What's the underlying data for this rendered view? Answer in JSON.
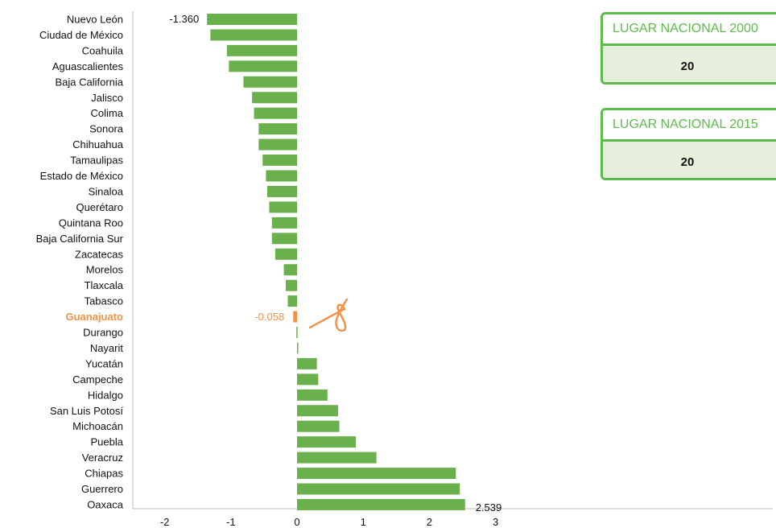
{
  "colors": {
    "bar": "#6ab04c",
    "highlight": "#f0934a",
    "card_border": "#5fba4e",
    "card_fill": "#e6efdc"
  },
  "cards": [
    {
      "title": "LUGAR NACIONAL 2000",
      "value": "20"
    },
    {
      "title": "LUGAR NACIONAL 2015",
      "value": "20"
    }
  ],
  "chart_data": {
    "type": "bar",
    "orientation": "horizontal",
    "categories": [
      "Nuevo León",
      "Ciudad de México",
      "Coahuila",
      "Aguascalientes",
      "Baja California",
      "Jalisco",
      "Colima",
      "Sonora",
      "Chihuahua",
      "Tamaulipas",
      "Estado de México",
      "Sinaloa",
      "Querétaro",
      "Quintana Roo",
      "Baja California Sur",
      "Zacatecas",
      "Morelos",
      "Tlaxcala",
      "Tabasco",
      "Guanajuato",
      "Durango",
      "Nayarit",
      "Yucatán",
      "Campeche",
      "Hidalgo",
      "San Luis Potosí",
      "Michoacán",
      "Puebla",
      "Veracruz",
      "Chiapas",
      "Guerrero",
      "Oaxaca"
    ],
    "values": [
      -1.36,
      -1.31,
      -1.06,
      -1.03,
      -0.81,
      -0.68,
      -0.65,
      -0.58,
      -0.58,
      -0.52,
      -0.47,
      -0.45,
      -0.42,
      -0.38,
      -0.38,
      -0.33,
      -0.2,
      -0.17,
      -0.14,
      -0.058,
      -0.01,
      0.01,
      0.3,
      0.32,
      0.46,
      0.62,
      0.64,
      0.89,
      1.2,
      2.4,
      2.46,
      2.539
    ],
    "highlight": "Guanajuato",
    "data_labels": [
      {
        "category": "Nuevo León",
        "text": "-1.360"
      },
      {
        "category": "Guanajuato",
        "text": "-0.058"
      },
      {
        "category": "Oaxaca",
        "text": "2.539"
      }
    ],
    "xlim": [
      -2.5,
      3.5
    ],
    "xticks": [
      -2,
      -1,
      0,
      1,
      2,
      3
    ],
    "xtick_labels": [
      "-2",
      "-1",
      "0",
      "1",
      "2",
      "3"
    ],
    "grid": false
  }
}
